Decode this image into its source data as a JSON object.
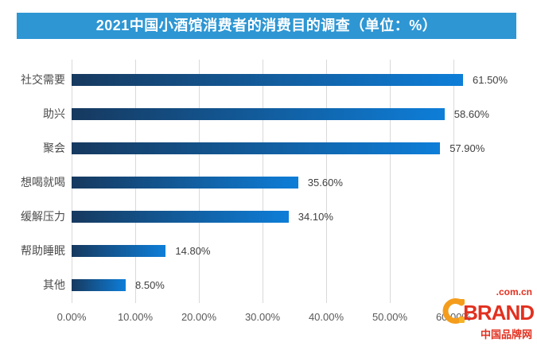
{
  "page": {
    "title_banner": "2021中国小酒馆消费者的消费目的调查（单位：%）"
  },
  "chart_data": {
    "type": "bar",
    "orientation": "horizontal",
    "title": "2021中国小酒馆消费者的消费目的调查（单位：%）",
    "unit": "%",
    "categories": [
      "社交需要",
      "助兴",
      "聚会",
      "想喝就喝",
      "缓解压力",
      "帮助睡眠",
      "其他"
    ],
    "values": [
      61.5,
      58.6,
      57.9,
      35.6,
      34.1,
      14.8,
      8.5
    ],
    "value_labels": [
      "61.50%",
      "58.60%",
      "57.90%",
      "35.60%",
      "34.10%",
      "14.80%",
      "8.50%"
    ],
    "x_ticks": [
      "0.00%",
      "10.00%",
      "20.00%",
      "30.00%",
      "40.00%",
      "50.00%",
      "60.00%"
    ],
    "x_tick_values": [
      0,
      10,
      20,
      30,
      40,
      50,
      60
    ],
    "xlim": [
      0,
      60
    ],
    "grid": "vertical-only",
    "legend": "none",
    "bar_style": "gradient dark-navy to bright-blue"
  },
  "watermark": {
    "domain": ".com.cn",
    "brand": "BRAND",
    "site_name": "中国品牌网"
  },
  "colors": {
    "banner_blue": "#2E96D3",
    "bar_gradient_start": "#16395F",
    "bar_gradient_end": "#0E7ED8",
    "gridline": "#D9D9D9",
    "category_label": "#4D4D4D",
    "value_label": "#404040",
    "tick_label": "#595959",
    "logo_orange": "#F49D1C",
    "logo_red": "#E2301F"
  }
}
